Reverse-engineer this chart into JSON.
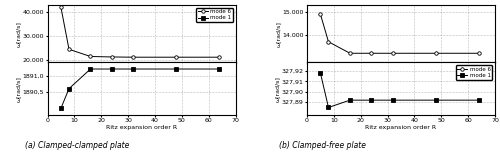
{
  "cc_x": [
    5,
    8,
    16,
    24,
    32,
    48,
    64
  ],
  "cc_mode6": [
    42000,
    24500,
    21500,
    21300,
    21200,
    21200,
    21200
  ],
  "cc_mode1": [
    1890.0,
    1890.6,
    1891.2,
    1891.2,
    1891.2,
    1891.2,
    1891.2
  ],
  "cf_x": [
    5,
    8,
    16,
    24,
    32,
    48,
    64
  ],
  "cf_mode6": [
    14900,
    13700,
    13200,
    13200,
    13200,
    13200,
    13200
  ],
  "cf_mode1": [
    327.918,
    327.885,
    327.892,
    327.892,
    327.892,
    327.892,
    327.892
  ],
  "cc_mode6_ylim": [
    19000,
    43000
  ],
  "cc_mode1_ylim": [
    1889.8,
    1891.4
  ],
  "cf_mode6_ylim": [
    12800,
    15300
  ],
  "cf_mode1_ylim": [
    327.878,
    327.928
  ],
  "cc_mode6_yticks": [
    20000,
    30000,
    40000
  ],
  "cc_mode1_yticks": [
    1890.5,
    1891.0
  ],
  "cf_mode6_yticks": [
    14000,
    15000
  ],
  "cf_mode1_yticks": [
    327.89,
    327.9,
    327.91,
    327.92
  ],
  "xlabel": "Ritz expansion order R",
  "ylabel": "ω[rad/s]",
  "legend_mode6": "mode 6",
  "legend_mode1": "mode 1",
  "caption_a": "(a) Clamped-clamped plate",
  "caption_b": "(b) Clamped-free plate",
  "xlim": [
    0,
    70
  ],
  "xticks": [
    0,
    10,
    20,
    30,
    40,
    50,
    60,
    70
  ]
}
